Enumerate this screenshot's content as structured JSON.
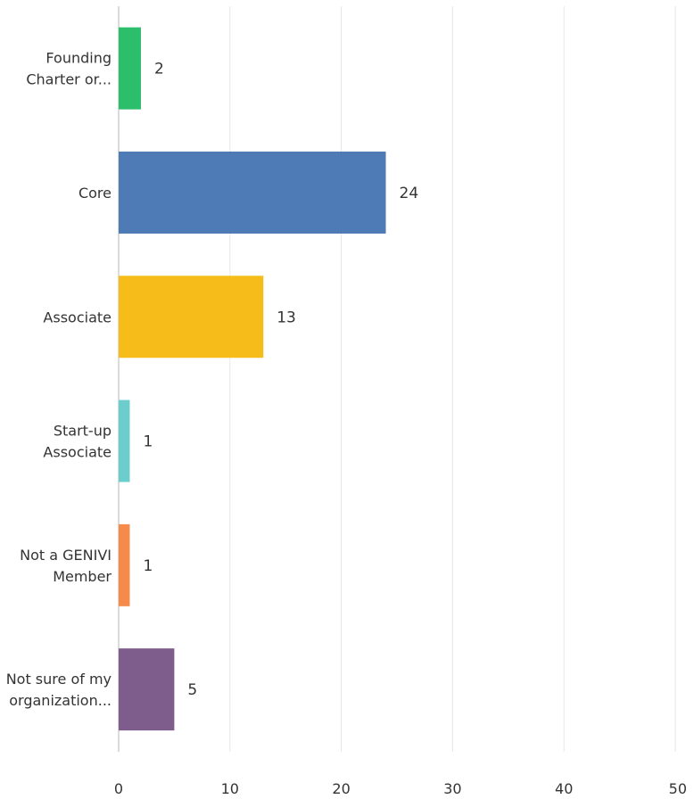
{
  "chart_data": {
    "type": "bar",
    "orientation": "horizontal",
    "categories": [
      [
        "Founding",
        "Charter or..."
      ],
      [
        "Core"
      ],
      [
        "Associate"
      ],
      [
        "Start-up",
        "Associate"
      ],
      [
        "Not a GENIVI",
        "Member"
      ],
      [
        "Not sure of my",
        "organization..."
      ]
    ],
    "values": [
      2,
      24,
      13,
      1,
      1,
      5
    ],
    "value_labels": [
      "2",
      "24",
      "13",
      "1",
      "1",
      "5"
    ],
    "colors": [
      "#2DBE6C",
      "#4E7AB5",
      "#F6BD1A",
      "#6CCDCD",
      "#F58A4B",
      "#7E5C8C"
    ],
    "title": "",
    "xlabel": "",
    "ylabel": "",
    "xlim": [
      0,
      50
    ],
    "xticks": [
      0,
      10,
      20,
      30,
      40,
      50
    ],
    "xtick_labels": [
      "0",
      "10",
      "20",
      "30",
      "40",
      "50"
    ],
    "grid": "vertical",
    "legend": "none"
  }
}
